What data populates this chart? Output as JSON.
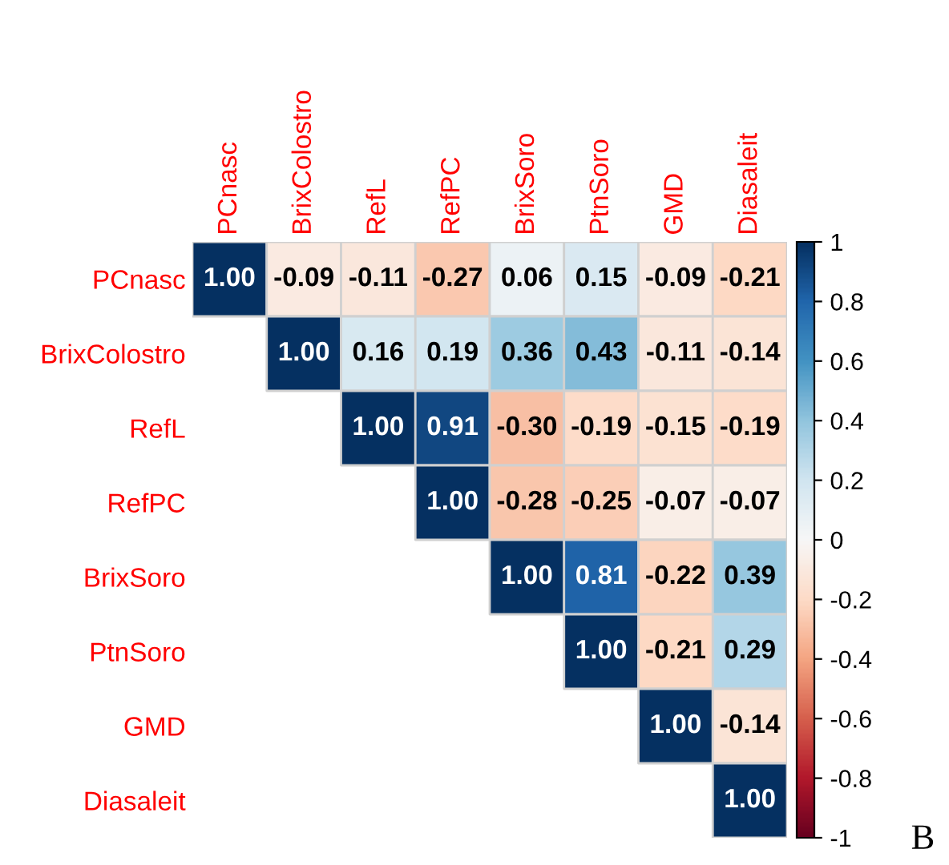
{
  "chart_data": {
    "type": "heatmap",
    "categories": [
      "PCnasc",
      "BrixColostro",
      "RefL",
      "RefPC",
      "BrixSoro",
      "PtnSoro",
      "GMD",
      "Diasaleit"
    ],
    "y_categories": [
      "PCnasc",
      "BrixColostro",
      "RefL",
      "RefPC",
      "BrixSoro",
      "PtnSoro",
      "GMD",
      "Diasaleit"
    ],
    "cells": [
      [
        1.0,
        -0.09,
        -0.11,
        -0.27,
        0.06,
        0.15,
        -0.09,
        -0.21
      ],
      [
        null,
        1.0,
        0.16,
        0.19,
        0.36,
        0.43,
        -0.11,
        -0.14
      ],
      [
        null,
        null,
        1.0,
        0.91,
        -0.3,
        -0.19,
        -0.15,
        -0.19
      ],
      [
        null,
        null,
        null,
        1.0,
        -0.28,
        -0.25,
        -0.07,
        -0.07
      ],
      [
        null,
        null,
        null,
        null,
        1.0,
        0.81,
        -0.22,
        0.39
      ],
      [
        null,
        null,
        null,
        null,
        null,
        1.0,
        -0.21,
        0.29
      ],
      [
        null,
        null,
        null,
        null,
        null,
        null,
        1.0,
        -0.14
      ],
      [
        null,
        null,
        null,
        null,
        null,
        null,
        null,
        1.0
      ]
    ],
    "clim": [
      -1,
      1
    ],
    "cticks": [
      -1,
      -0.8,
      -0.6,
      -0.4,
      -0.2,
      0,
      0.2,
      0.4,
      0.6,
      0.8,
      1
    ],
    "cell_labels": [
      [
        "1.00",
        "-0.09",
        "-0.11",
        "-0.27",
        "0.06",
        "0.15",
        "-0.09",
        "-0.21"
      ],
      [
        null,
        "1.00",
        "0.16",
        "0.19",
        "0.36",
        "0.43",
        "-0.11",
        "-0.14"
      ],
      [
        null,
        null,
        "1.00",
        "0.91",
        "-0.30",
        "-0.19",
        "-0.15",
        "-0.19"
      ],
      [
        null,
        null,
        null,
        "1.00",
        "-0.28",
        "-0.25",
        "-0.07",
        "-0.07"
      ],
      [
        null,
        null,
        null,
        null,
        "1.00",
        "0.81",
        "-0.22",
        "0.39"
      ],
      [
        null,
        null,
        null,
        null,
        null,
        "1.00",
        "-0.21",
        "0.29"
      ],
      [
        null,
        null,
        null,
        null,
        null,
        null,
        "1.00",
        "-0.14"
      ],
      [
        null,
        null,
        null,
        null,
        null,
        null,
        null,
        "1.00"
      ]
    ],
    "annotations": [
      "B"
    ]
  }
}
